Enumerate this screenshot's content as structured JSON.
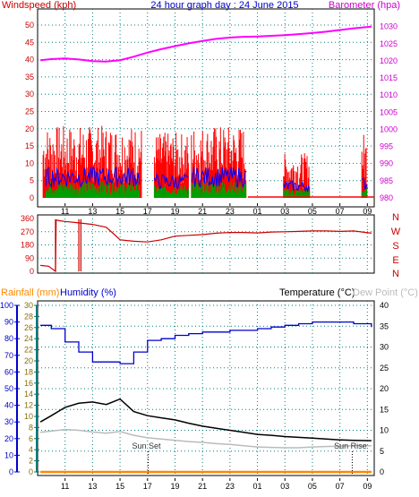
{
  "title": "24 hour graph day : 24 June 2015",
  "colors": {
    "wind_gust": "#ff0000",
    "wind_avg": "#0000ff",
    "wind_green": "#00a000",
    "barometer": "#ff00ff",
    "wind_dir": "#cc0000",
    "humidity": "#0000cc",
    "temperature": "#000000",
    "dew_point": "#bbbbbb",
    "rainfall": "#ff8800",
    "label_red": "#cc0000",
    "label_blue": "#0000cc",
    "label_orange": "#ff8800",
    "label_teal": "#007777",
    "grid": "#008080"
  },
  "x_ticks": [
    "11",
    "13",
    "15",
    "17",
    "19",
    "21",
    "23",
    "01",
    "03",
    "05",
    "07",
    "09"
  ],
  "chart_data": [
    {
      "type": "line",
      "name": "wind-barometer",
      "left_axis_label": "Windspeed (kph)",
      "right_axis_label": "Barometer (hpa)",
      "left_ticks": [
        "0",
        "5",
        "10",
        "15",
        "20",
        "25",
        "30",
        "35",
        "40",
        "45",
        "50"
      ],
      "right_ticks": [
        "980",
        "985",
        "990",
        "995",
        "1000",
        "1005",
        "1010",
        "1015",
        "1020",
        "1025",
        "1030"
      ],
      "ylim_left": [
        0,
        50
      ],
      "ylim_right": [
        980,
        1032
      ],
      "grid": true,
      "x": [
        9.2,
        10,
        11,
        12,
        13,
        14,
        15,
        16,
        17,
        18,
        19,
        20,
        21,
        22,
        23,
        24,
        25,
        26,
        27,
        28,
        29,
        30,
        31,
        32,
        33.3
      ],
      "barometer": [
        1020.2,
        1020.5,
        1020.7,
        1020.4,
        1019.9,
        1019.8,
        1020.2,
        1021.2,
        1022.4,
        1023.4,
        1024.3,
        1025.1,
        1025.8,
        1026.4,
        1026.8,
        1027.0,
        1027.1,
        1027.3,
        1027.5,
        1027.8,
        1028.1,
        1028.5,
        1029.0,
        1029.5,
        1030.0
      ],
      "wind_gust_bands": [
        {
          "from": 9.4,
          "to": 16.6,
          "max": 21
        },
        {
          "from": 17.5,
          "to": 20.0,
          "max": 19
        },
        {
          "from": 20.2,
          "to": 24.2,
          "max": 21
        },
        {
          "from": 26.9,
          "to": 28.8,
          "max": 13
        },
        {
          "from": 32.6,
          "to": 33.0,
          "max": 19
        }
      ],
      "wind_avg_bands": [
        {
          "from": 9.6,
          "to": 16.4,
          "max": 9
        },
        {
          "from": 17.5,
          "to": 20.0,
          "max": 7
        },
        {
          "from": 20.2,
          "to": 24.2,
          "max": 9
        },
        {
          "from": 26.9,
          "to": 28.8,
          "max": 5
        },
        {
          "from": 32.6,
          "to": 33.0,
          "max": 6
        }
      ]
    },
    {
      "type": "scatter",
      "name": "wind-direction",
      "right_axis_labels": [
        "N",
        "W",
        "S",
        "E",
        "N"
      ],
      "left_ticks": [
        "0",
        "90",
        "180",
        "270",
        "360"
      ],
      "ylim": [
        0,
        360
      ],
      "x": [
        9.2,
        9.8,
        10.3,
        10.35,
        10.6,
        11,
        12,
        13,
        14,
        14.6,
        15,
        16,
        17,
        18,
        19,
        20,
        21,
        22,
        23,
        24,
        25,
        26,
        27,
        28,
        29,
        30,
        31,
        32,
        32.9,
        33.3
      ],
      "values": [
        40,
        35,
        0,
        350,
        345,
        340,
        330,
        320,
        300,
        250,
        215,
        205,
        200,
        215,
        240,
        245,
        250,
        260,
        265,
        265,
        262,
        268,
        270,
        272,
        275,
        275,
        272,
        275,
        265,
        260
      ]
    },
    {
      "type": "line",
      "name": "humidity-temperature",
      "left_axis_labels": [
        "Rainfall (mm)",
        "Humidity (%)"
      ],
      "right_axis_labels": [
        "Temperature (°C)",
        "Dew Point (°C)"
      ],
      "rain_ticks": [
        "0",
        "2",
        "4",
        "6",
        "8",
        "10",
        "12",
        "14",
        "16",
        "18",
        "20",
        "22",
        "24",
        "26",
        "28",
        "30"
      ],
      "humidity_ticks": [
        "0",
        "10",
        "20",
        "30",
        "40",
        "50",
        "60",
        "70",
        "80",
        "90",
        "100"
      ],
      "temp_ticks": [
        "0",
        "5",
        "10",
        "15",
        "20",
        "25",
        "30",
        "35",
        "40"
      ],
      "ylim_humidity": [
        0,
        100
      ],
      "ylim_temp": [
        0,
        40
      ],
      "grid": true,
      "x": [
        9.2,
        10,
        11,
        12,
        13,
        14,
        15,
        16,
        17,
        18,
        19,
        20,
        21,
        22,
        23,
        24,
        25,
        26,
        27,
        28,
        29,
        30,
        31,
        32,
        33.3
      ],
      "humidity": [
        88,
        86,
        78,
        72,
        66,
        66,
        65,
        72,
        79,
        80,
        82,
        83,
        84,
        84,
        85,
        85,
        86,
        87,
        88,
        89,
        90,
        90,
        90,
        89,
        87
      ],
      "temperature": [
        12,
        13.5,
        15.5,
        16.5,
        16.8,
        16.2,
        17.5,
        14.5,
        13.5,
        13.0,
        12.5,
        11.7,
        11.0,
        10.5,
        10.0,
        9.5,
        9.0,
        8.8,
        8.5,
        8.3,
        8.1,
        7.9,
        7.7,
        7.6,
        7.5
      ],
      "dew_point": [
        9.5,
        9.8,
        10.2,
        10.0,
        9.6,
        9.3,
        9.7,
        8.8,
        8.2,
        7.9,
        7.6,
        7.3,
        7.1,
        6.8,
        6.6,
        6.3,
        6.0,
        5.9,
        5.8,
        5.8,
        6.0,
        6.1,
        6.2,
        6.3,
        6.3
      ],
      "rainfall": [
        0,
        0,
        0,
        0,
        0,
        0,
        0,
        0,
        0,
        0,
        0,
        0,
        0,
        0,
        0,
        0,
        0,
        0,
        0,
        0,
        0,
        0,
        0,
        0,
        0
      ],
      "annotations": [
        {
          "text": "Sun Set",
          "x": 17.05
        },
        {
          "text": "Sun Rise",
          "x": 31.9
        }
      ]
    }
  ]
}
